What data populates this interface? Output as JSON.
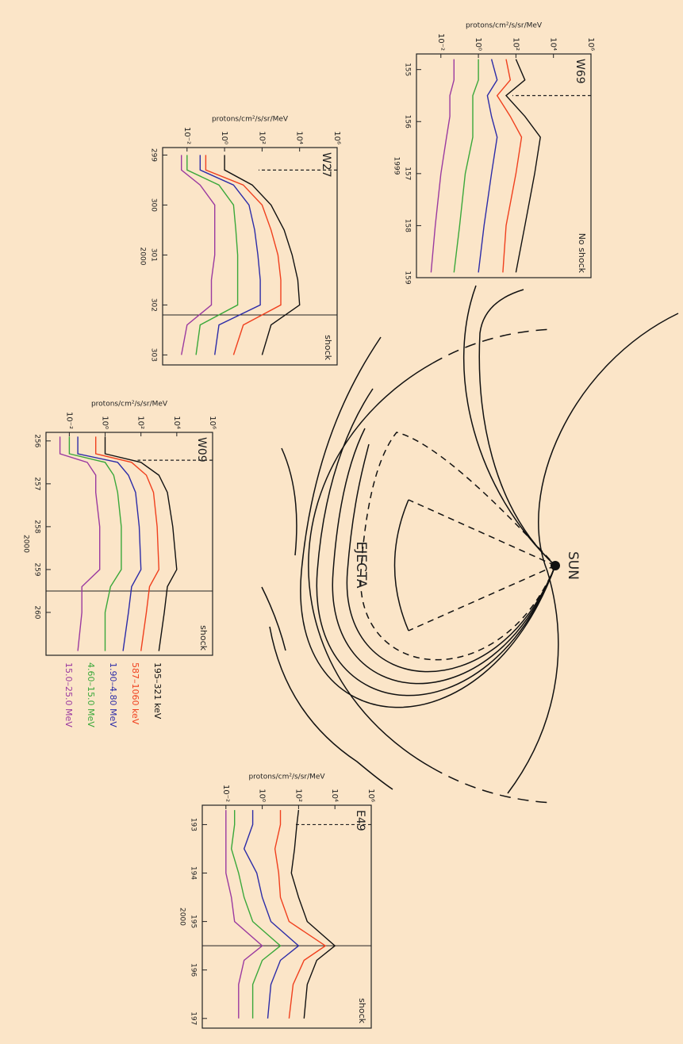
{
  "chart_data": [
    {
      "type": "line",
      "title": "W69",
      "annotation": "No shock",
      "xlabel": "1999",
      "ylabel": "protons/cm²/s/sr/MeV",
      "x": [
        154.8,
        155.2,
        155.5,
        155.9,
        156.3,
        157.0,
        158.0,
        158.9
      ],
      "series": [
        {
          "values": [
            100,
            300,
            30,
            300,
            2000,
            1000,
            300,
            100
          ]
        },
        {
          "values": [
            30,
            50,
            10,
            50,
            200,
            100,
            30,
            20
          ]
        },
        {
          "values": [
            5,
            10,
            3,
            5,
            10,
            5,
            2,
            1
          ]
        },
        {
          "values": [
            1,
            1,
            0.5,
            0.5,
            0.5,
            0.2,
            0.1,
            0.05
          ]
        },
        {
          "values": [
            0.05,
            0.05,
            0.03,
            0.03,
            0.02,
            0.01,
            0.005,
            0.003
          ]
        }
      ],
      "xlim": [
        154.7,
        159
      ],
      "xticks": [
        155,
        156,
        157,
        158,
        159
      ],
      "ylim": [
        0.0005,
        1000000
      ],
      "log_y": true,
      "yticks": [
        {
          "value": 0.01,
          "label": "10⁻²"
        },
        {
          "value": 1,
          "label": "10⁰"
        },
        {
          "value": 100,
          "label": "10²"
        },
        {
          "value": 10000,
          "label": "10⁴"
        },
        {
          "value": 1000000,
          "label": "10⁶"
        }
      ],
      "markers": [
        {
          "x": 155.5,
          "style": "dashed"
        }
      ]
    },
    {
      "type": "line",
      "title": "W27",
      "annotation": "shock",
      "xlabel": "2000",
      "ylabel": "protons/cm²/s/sr/MeV",
      "x": [
        299.0,
        299.3,
        299.6,
        300.0,
        300.5,
        301.0,
        301.5,
        302.0,
        302.4,
        303.0
      ],
      "series": [
        {
          "values": [
            1,
            1,
            30,
            300,
            1500,
            4000,
            8000,
            10000,
            300,
            100
          ]
        },
        {
          "values": [
            0.1,
            0.1,
            10,
            100,
            300,
            700,
            1000,
            1000,
            10,
            3
          ]
        },
        {
          "values": [
            0.05,
            0.05,
            3,
            20,
            40,
            60,
            80,
            80,
            0.5,
            0.3
          ]
        },
        {
          "values": [
            0.01,
            0.01,
            0.5,
            3,
            4,
            5,
            5,
            5,
            0.05,
            0.03
          ]
        },
        {
          "values": [
            0.005,
            0.005,
            0.05,
            0.3,
            0.3,
            0.3,
            0.2,
            0.2,
            0.01,
            0.005
          ]
        }
      ],
      "xlim": [
        298.85,
        303.2
      ],
      "xticks": [
        299,
        300,
        301,
        302,
        303
      ],
      "ylim": [
        0.0005,
        1000000
      ],
      "log_y": true,
      "yticks": [
        {
          "value": 0.01,
          "label": "10⁻²"
        },
        {
          "value": 1,
          "label": "10⁰"
        },
        {
          "value": 100,
          "label": "10²"
        },
        {
          "value": 10000,
          "label": "10⁴"
        },
        {
          "value": 1000000,
          "label": "10⁶"
        }
      ],
      "markers": [
        {
          "x": 299.3,
          "style": "dashed"
        },
        {
          "x": 302.2,
          "style": "solid"
        }
      ]
    },
    {
      "type": "line",
      "title": "W09",
      "annotation": "shock",
      "xlabel": "2000",
      "ylabel": "protons/cm²/s/sr/MeV",
      "x": [
        255.9,
        256.3,
        256.5,
        256.8,
        257.2,
        258.0,
        259.0,
        259.4,
        260.0,
        260.9
      ],
      "series": [
        {
          "values": [
            1,
            1,
            100,
            1000,
            3000,
            6000,
            10000,
            3000,
            2000,
            1000
          ]
        },
        {
          "values": [
            0.3,
            0.3,
            30,
            200,
            500,
            800,
            1000,
            300,
            200,
            100
          ]
        },
        {
          "values": [
            0.03,
            0.03,
            5,
            20,
            50,
            80,
            100,
            30,
            20,
            10
          ]
        },
        {
          "values": [
            0.01,
            0.01,
            1,
            3,
            5,
            8,
            8,
            2,
            1,
            1
          ]
        },
        {
          "values": [
            0.003,
            0.003,
            0.1,
            0.3,
            0.3,
            0.5,
            0.5,
            0.05,
            0.05,
            0.03
          ]
        }
      ],
      "xlim": [
        255.8,
        261
      ],
      "xticks": [
        256,
        257,
        258,
        259,
        260
      ],
      "ylim": [
        0.0005,
        1000000
      ],
      "log_y": true,
      "yticks": [
        {
          "value": 0.01,
          "label": "10⁻²"
        },
        {
          "value": 1,
          "label": "10⁰"
        },
        {
          "value": 100,
          "label": "10²"
        },
        {
          "value": 10000,
          "label": "10⁴"
        },
        {
          "value": 1000000,
          "label": "10⁶"
        }
      ],
      "markers": [
        {
          "x": 256.45,
          "style": "dashed"
        },
        {
          "x": 259.5,
          "style": "solid"
        }
      ]
    },
    {
      "type": "line",
      "title": "E49",
      "annotation": "shock",
      "xlabel": "2000",
      "ylabel": "protons/cm²/s/sr/MeV",
      "x": [
        192.7,
        193.0,
        193.5,
        194.0,
        194.5,
        195.0,
        195.5,
        195.8,
        196.3,
        197.0
      ],
      "series": [
        {
          "values": [
            100,
            80,
            60,
            40,
            100,
            300,
            10000,
            1000,
            300,
            200
          ]
        },
        {
          "values": [
            10,
            10,
            5,
            8,
            10,
            30,
            3000,
            200,
            50,
            30
          ]
        },
        {
          "values": [
            0.3,
            0.3,
            0.1,
            0.5,
            1,
            3,
            100,
            10,
            3,
            2
          ]
        },
        {
          "values": [
            0.03,
            0.03,
            0.02,
            0.05,
            0.1,
            0.3,
            10,
            1,
            0.3,
            0.3
          ]
        },
        {
          "values": [
            0.01,
            0.01,
            0.01,
            0.01,
            0.02,
            0.03,
            1,
            0.1,
            0.05,
            0.05
          ]
        }
      ],
      "xlim": [
        192.6,
        197.2
      ],
      "xticks": [
        193,
        194,
        195,
        196,
        197
      ],
      "ylim": [
        0.0005,
        1000000
      ],
      "log_y": true,
      "yticks": [
        {
          "value": 0.01,
          "label": "10⁻²"
        },
        {
          "value": 1,
          "label": "10⁰"
        },
        {
          "value": 100,
          "label": "10²"
        },
        {
          "value": 10000,
          "label": "10⁴"
        },
        {
          "value": 1000000,
          "label": "10⁶"
        }
      ],
      "markers": [
        {
          "x": 193.0,
          "style": "dashed"
        },
        {
          "x": 195.5,
          "style": "solid"
        }
      ]
    }
  ],
  "legend": [
    {
      "name": "195–321 keV",
      "color": "#111111"
    },
    {
      "name": "587–1060 keV",
      "color": "#f0401e"
    },
    {
      "name": "1.90–4.80 MeV",
      "color": "#2c2ca8"
    },
    {
      "name": "4.60–15.0 MeV",
      "color": "#3aa83a"
    },
    {
      "name": "15.0–25.0 MeV",
      "color": "#9b3aa0"
    }
  ],
  "diagram": {
    "sun_label": "SUN",
    "ejecta_label": "EJECTA"
  }
}
